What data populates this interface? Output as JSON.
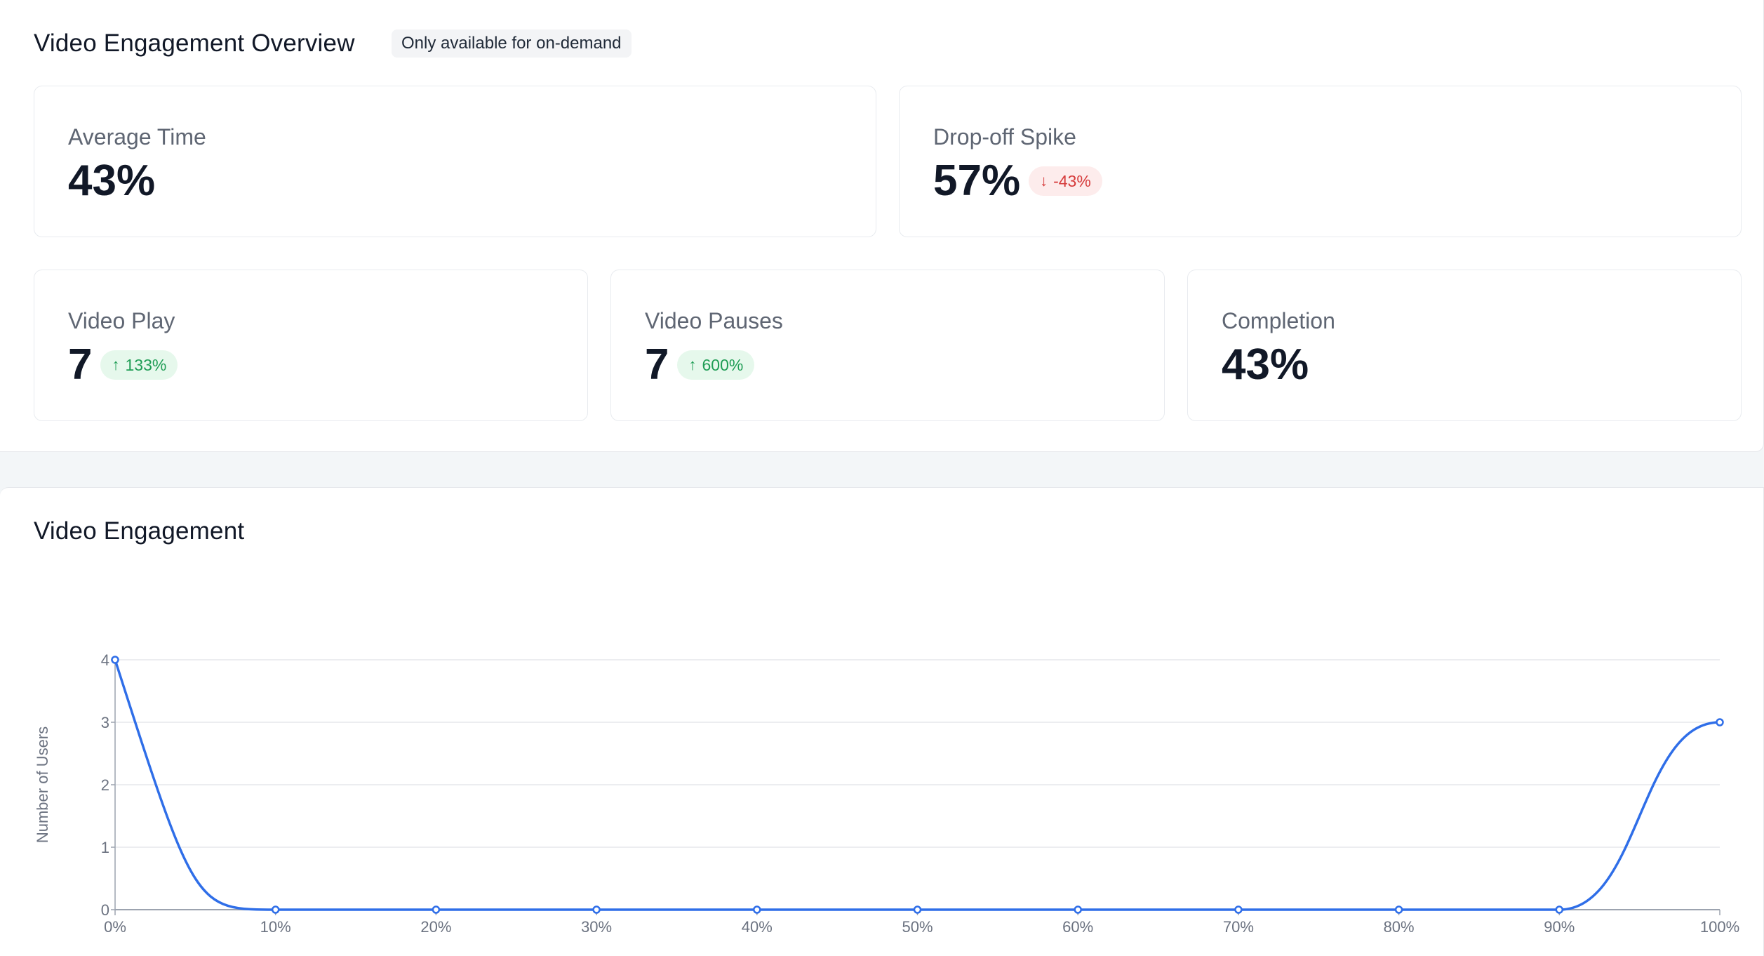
{
  "overview": {
    "title": "Video Engagement Overview",
    "badge": "Only available for on-demand",
    "cards": {
      "average_time": {
        "label": "Average Time",
        "value": "43%"
      },
      "drop_off": {
        "label": "Drop-off Spike",
        "value": "57%",
        "delta": "-43%",
        "delta_direction": "down",
        "delta_icon": "arrow-down-icon"
      },
      "video_play": {
        "label": "Video Play",
        "value": "7",
        "delta": "133%",
        "delta_direction": "up",
        "delta_icon": "arrow-up-icon"
      },
      "video_pauses": {
        "label": "Video Pauses",
        "value": "7",
        "delta": "600%",
        "delta_direction": "up",
        "delta_icon": "arrow-up-icon"
      },
      "completion": {
        "label": "Completion",
        "value": "43%"
      }
    }
  },
  "engagement": {
    "title": "Video Engagement"
  },
  "colors": {
    "line": "#2f6ee8",
    "positive": "#1f9d55",
    "negative": "#d63b3b",
    "grid": "#e5e7eb"
  },
  "chart_data": {
    "type": "line",
    "title": "Video Engagement",
    "xlabel": "",
    "ylabel": "Number of Users",
    "categories": [
      "0%",
      "10%",
      "20%",
      "30%",
      "40%",
      "50%",
      "60%",
      "70%",
      "80%",
      "90%",
      "100%"
    ],
    "series": [
      {
        "values": [
          4,
          0,
          0,
          0,
          0,
          0,
          0,
          0,
          0,
          0,
          3
        ]
      }
    ],
    "y_ticks": [
      0,
      1,
      2,
      3,
      4
    ],
    "ylim": [
      0,
      4
    ],
    "grid": true,
    "smooth": true
  }
}
